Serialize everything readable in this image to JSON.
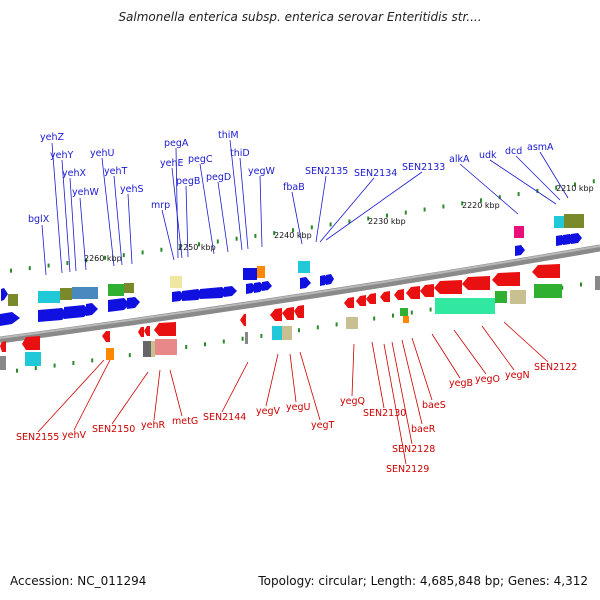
{
  "title": "Salmonella enterica subsp. enterica serovar Enteritidis str....",
  "footer": {
    "accession": "Accession: NC_011294",
    "stats": "Topology: circular; Length: 4,685,848 bp; Genes: 4,312"
  },
  "colors": {
    "forward_gene": "#1010e0",
    "reverse_gene": "#e81010",
    "forward_label": "#1a1ad0",
    "reverse_label": "#cc0000",
    "backbone": "#808080"
  },
  "position_labels": [
    "2210 kbp",
    "2220 kbp",
    "2230 kbp",
    "2240 kbp",
    "2250 kbp",
    "2260 kbp"
  ],
  "forward_labels": [
    "bglX",
    "yehZ",
    "yehY",
    "yehX",
    "yehW",
    "yehU",
    "yehT",
    "yehS",
    "mrp",
    "pegA",
    "yehE",
    "pegB",
    "pegC",
    "pegD",
    "thiM",
    "thiD",
    "yegW",
    "fbaB",
    "SEN2135",
    "SEN2134",
    "SEN2133",
    "alkA",
    "udk",
    "dcd",
    "asmA"
  ],
  "reverse_labels": [
    "SEN2155",
    "yehV",
    "SEN2150",
    "yehR",
    "metG",
    "SEN2144",
    "yegV",
    "yegU",
    "yegT",
    "yegQ",
    "SEN2130",
    "baeS",
    "baeR",
    "SEN2128",
    "SEN2129",
    "yegB",
    "yegO",
    "yegN",
    "SEN2122"
  ]
}
